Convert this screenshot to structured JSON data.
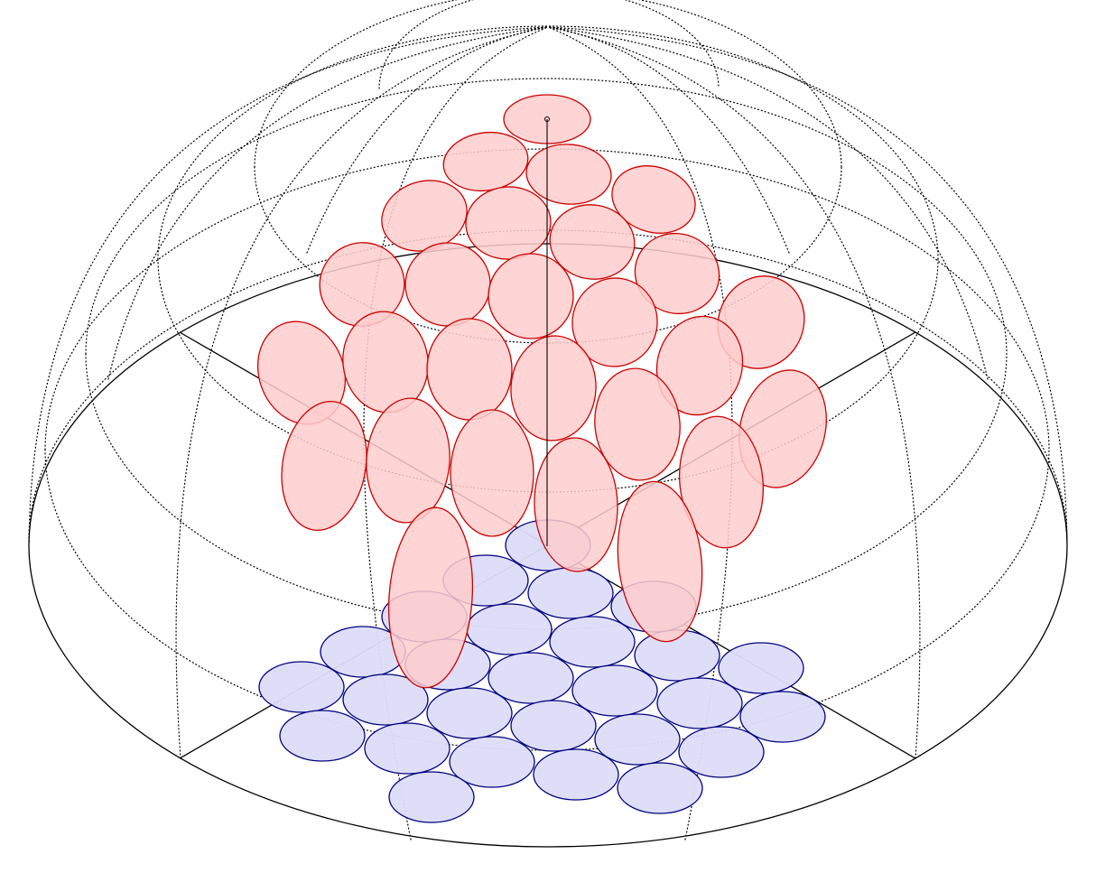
{
  "figure": {
    "background": "#ffffff",
    "line_color": "#000000",
    "wireframe_style": "dotted"
  },
  "upper_cells": {
    "fill": "#ffcccc",
    "stroke": "#cc0000",
    "count": 37
  },
  "lower_cells": {
    "fill": "#dcdcf8",
    "stroke": "#000080",
    "count": 37
  }
}
